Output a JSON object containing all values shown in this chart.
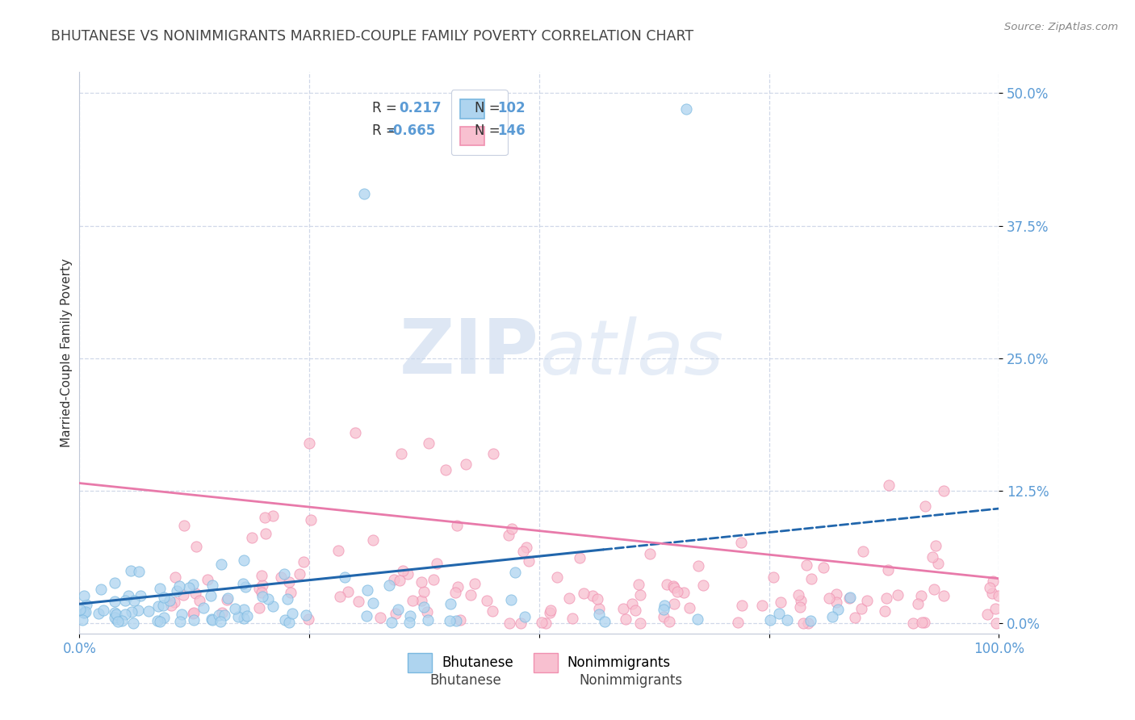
{
  "title": "BHUTANESE VS NONIMMIGRANTS MARRIED-COUPLE FAMILY POVERTY CORRELATION CHART",
  "source": "Source: ZipAtlas.com",
  "ylabel_label": "Married-Couple Family Poverty",
  "ytick_labels": [
    "0.0%",
    "12.5%",
    "25.0%",
    "37.5%",
    "50.0%"
  ],
  "ytick_values": [
    0.0,
    12.5,
    25.0,
    37.5,
    50.0
  ],
  "xrange": [
    0.0,
    100.0
  ],
  "yrange": [
    -1.0,
    52.0
  ],
  "bhutanese_R": 0.217,
  "bhutanese_N": 102,
  "nonimmigrant_R": -0.665,
  "nonimmigrant_N": 146,
  "blue_face_color": "#aed4ef",
  "blue_edge_color": "#7ab8e0",
  "pink_face_color": "#f8c0d0",
  "pink_edge_color": "#f090b0",
  "blue_line_color": "#2166ac",
  "pink_line_color": "#e87aaa",
  "legend_label1": "Bhutanese",
  "legend_label2": "Nonimmigrants",
  "watermark_zip": "ZIP",
  "watermark_atlas": "atlas",
  "background_color": "#ffffff",
  "grid_color": "#d0d8e8",
  "title_color": "#444444",
  "axis_label_color": "#5b9bd5",
  "tick_label_color": "#5b9bd5",
  "source_color": "#888888"
}
